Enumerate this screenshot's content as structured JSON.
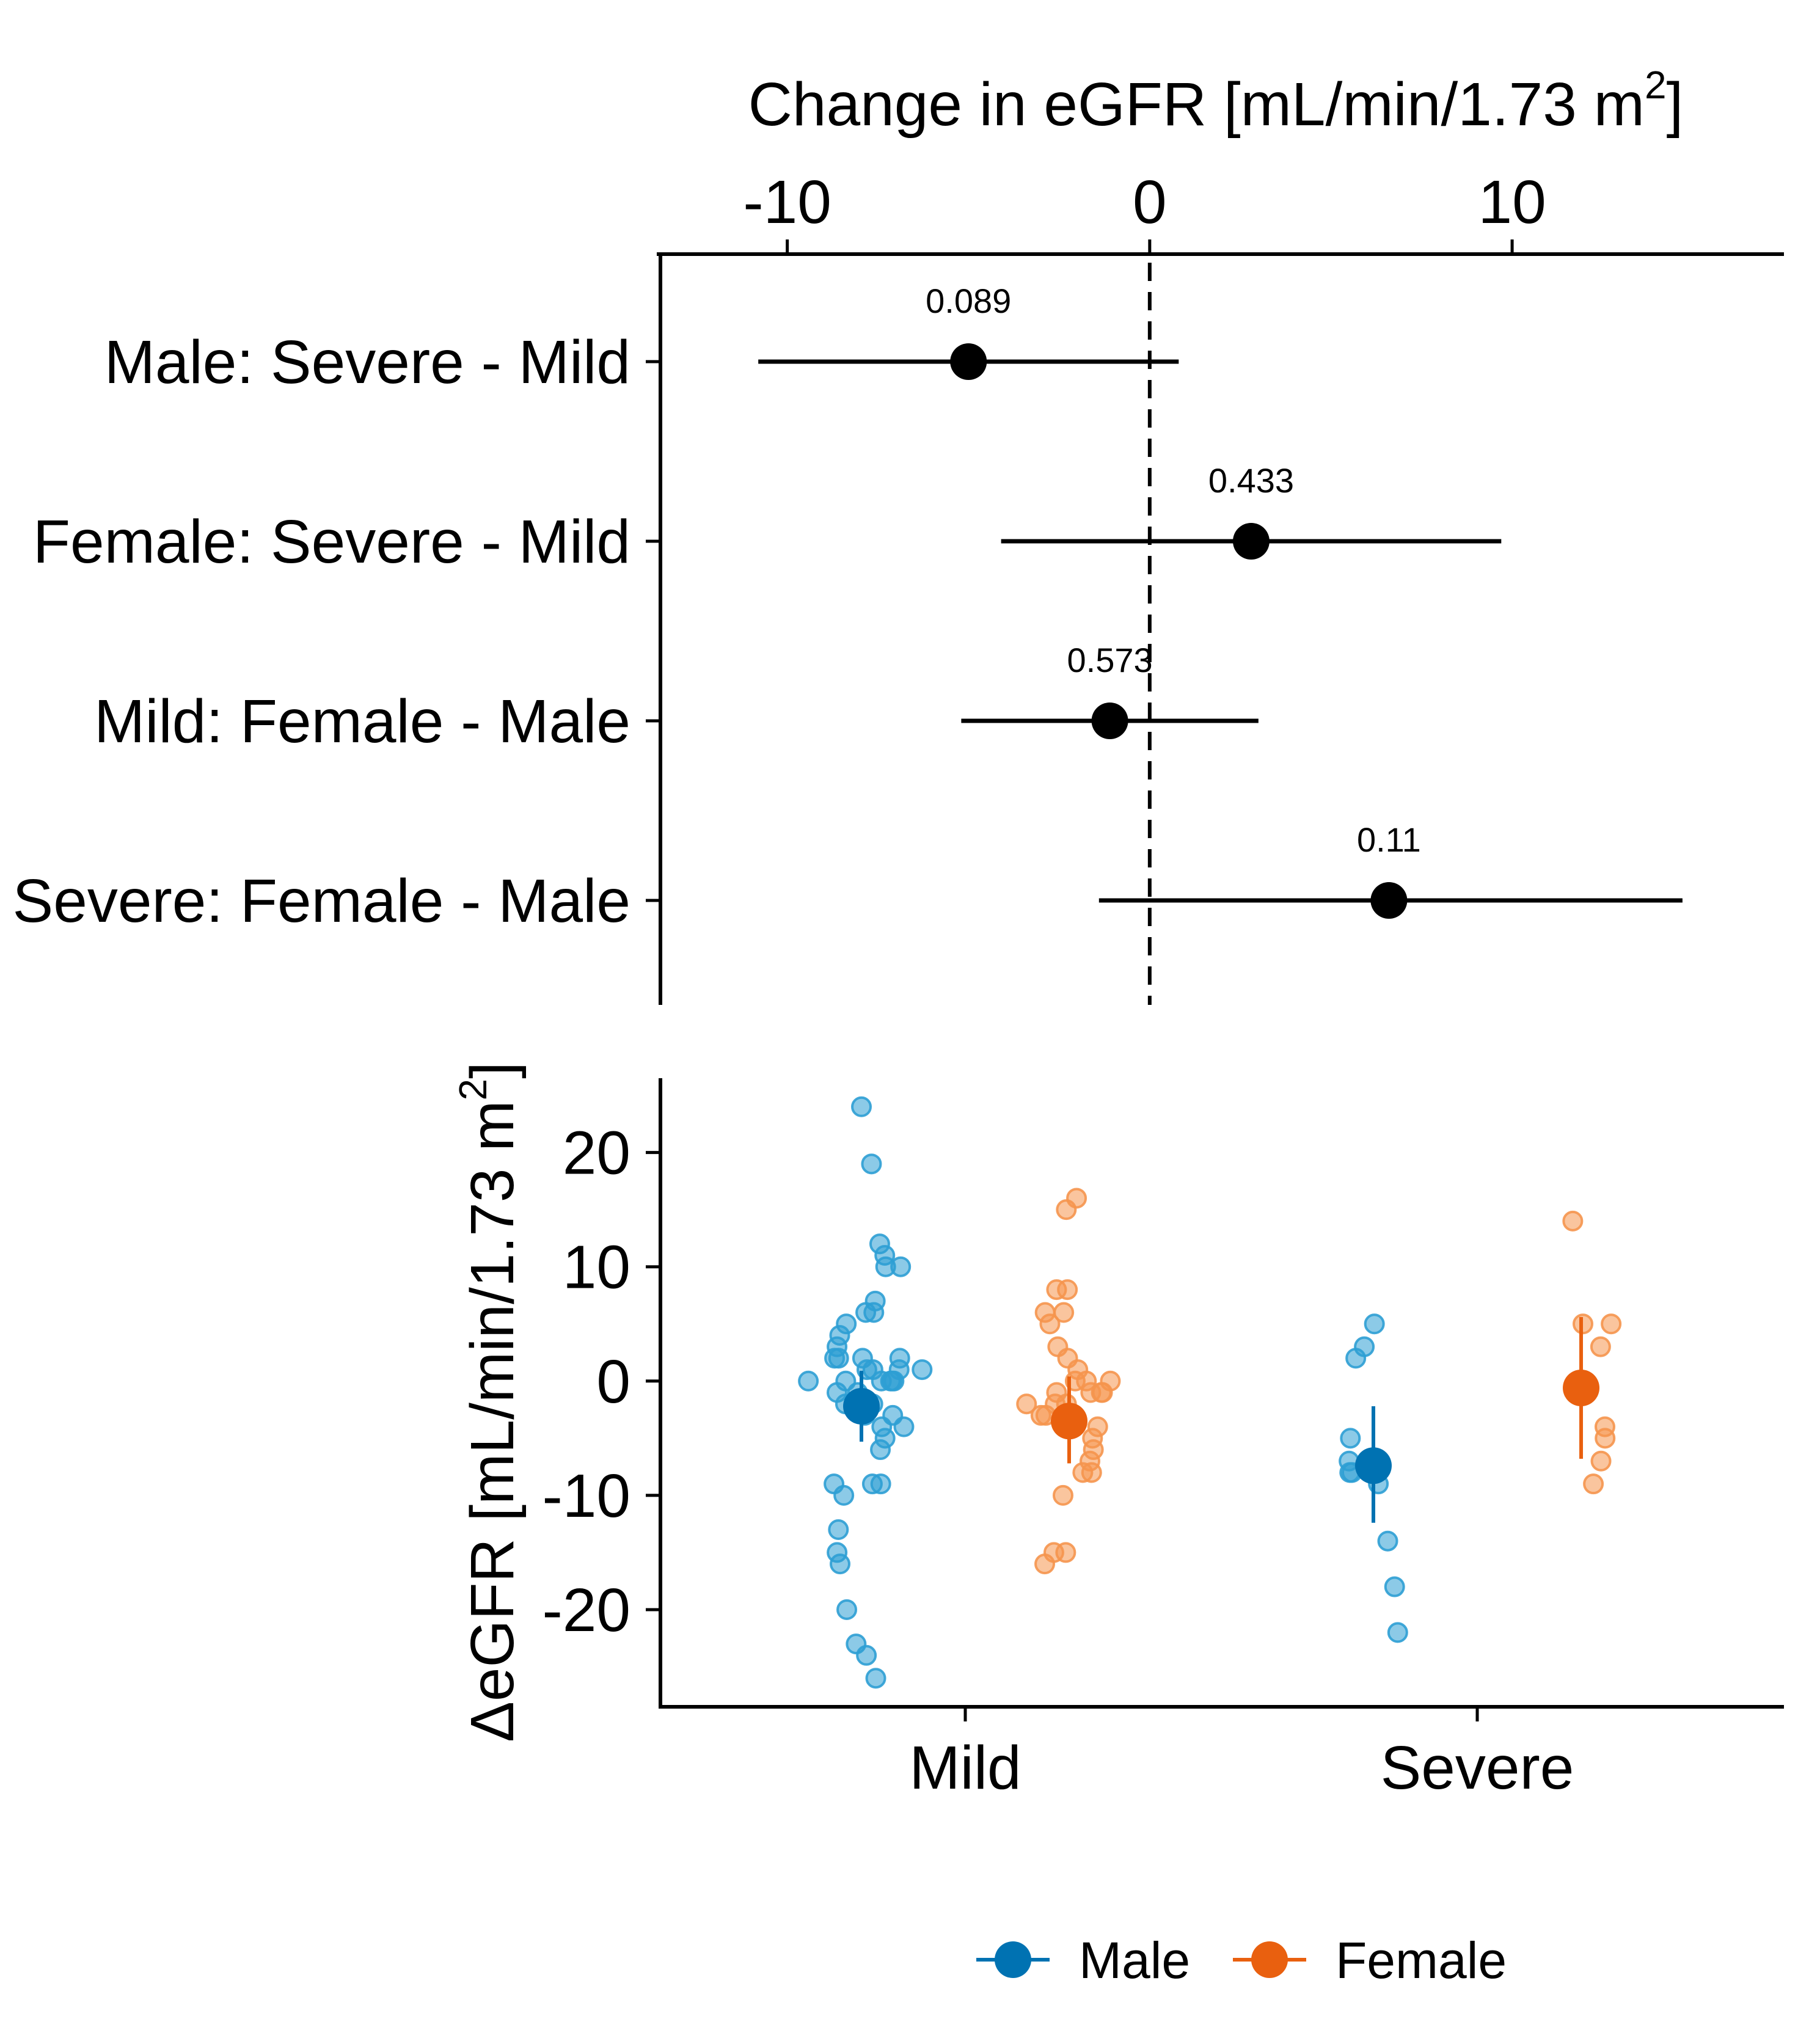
{
  "colors": {
    "male": "#0072B2",
    "female": "#E9600F",
    "male_point": "#2E9FD4",
    "female_point": "#F5954E",
    "ink": "#000000"
  },
  "chart_data": [
    {
      "type": "forest",
      "title": "",
      "xlabel_main": "Change in eGFR [mL/min/1.73 m",
      "xlabel_sup": "2",
      "xlabel_close": "]",
      "xlim": [
        -13.5,
        17.5
      ],
      "xticks": [
        -10,
        0,
        10
      ],
      "xtick_labels": [
        "-10",
        "0",
        "10"
      ],
      "reference_line": 0,
      "rows": [
        {
          "label": "Male: Severe - Mild",
          "estimate": -5.0,
          "lower": -10.8,
          "upper": 0.8,
          "p_label": "0.089"
        },
        {
          "label": "Female: Severe - Mild",
          "estimate": 2.8,
          "lower": -4.1,
          "upper": 9.7,
          "p_label": "0.433"
        },
        {
          "label": "Mild: Female - Male",
          "estimate": -1.1,
          "lower": -5.2,
          "upper": 3.0,
          "p_label": "0.573"
        },
        {
          "label": "Severe: Female - Male",
          "estimate": 6.6,
          "lower": -1.4,
          "upper": 14.7,
          "p_label": "0.11"
        }
      ]
    },
    {
      "type": "scatter",
      "title": "",
      "ylabel_main": "ΔeGFR [mL/min/1.73 m",
      "ylabel_sup": "2",
      "ylabel_close": "]",
      "ylim": [
        -28.5,
        26.5
      ],
      "yticks": [
        -20,
        -10,
        0,
        10,
        20
      ],
      "ytick_labels": [
        "-20",
        "-10",
        "0",
        "10",
        "20"
      ],
      "categories": [
        "Mild",
        "Severe"
      ],
      "legend_position": "bottom",
      "series": [
        {
          "name": "Male",
          "summary": [
            {
              "category": "Mild",
              "mean": -2.2,
              "lower": -5.3,
              "upper": 0.9
            },
            {
              "category": "Severe",
              "mean": -7.4,
              "lower": -12.4,
              "upper": -2.2
            }
          ],
          "points": [
            {
              "category": "Mild",
              "y": [
                24,
                19,
                12,
                11,
                10,
                10,
                7,
                6,
                6,
                5,
                4,
                3,
                2,
                2,
                2,
                2,
                1,
                1,
                1,
                1,
                0,
                0,
                0,
                0,
                0,
                0,
                -1,
                -1,
                -2,
                -2,
                -3,
                -3,
                -4,
                -4,
                -5,
                -6,
                -9,
                -9,
                -9,
                -10,
                -13,
                -15,
                -16,
                -20,
                -23,
                -24,
                -26
              ]
            },
            {
              "category": "Severe",
              "y": [
                5,
                3,
                2,
                -5,
                -7,
                -8,
                -8,
                -8,
                -9,
                -14,
                -18,
                -22
              ]
            }
          ]
        },
        {
          "name": "Female",
          "summary": [
            {
              "category": "Mild",
              "mean": -3.5,
              "lower": -7.2,
              "upper": 0.4
            },
            {
              "category": "Severe",
              "mean": -0.6,
              "lower": -6.8,
              "upper": 5.6
            }
          ],
          "points": [
            {
              "category": "Mild",
              "y": [
                16,
                15,
                8,
                8,
                6,
                6,
                5,
                3,
                2,
                1,
                0,
                0,
                0,
                -1,
                -1,
                -1,
                -1,
                -2,
                -2,
                -2,
                -3,
                -3,
                -3,
                -4,
                -4,
                -4,
                -5,
                -6,
                -7,
                -8,
                -8,
                -10,
                -15,
                -15,
                -16
              ]
            },
            {
              "category": "Severe",
              "y": [
                14,
                5,
                5,
                3,
                -4,
                -5,
                -7,
                -9
              ]
            }
          ]
        }
      ]
    }
  ]
}
